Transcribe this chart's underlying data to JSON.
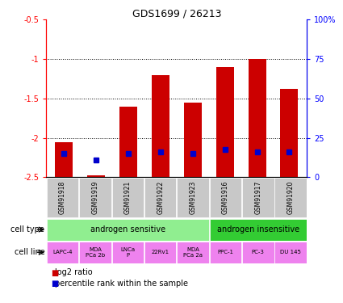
{
  "title": "GDS1699 / 26213",
  "samples": [
    "GSM91918",
    "GSM91919",
    "GSM91921",
    "GSM91922",
    "GSM91923",
    "GSM91916",
    "GSM91917",
    "GSM91920"
  ],
  "log2_ratio": [
    -2.05,
    -2.48,
    -1.6,
    -1.2,
    -1.55,
    -1.1,
    -1.0,
    -1.38
  ],
  "percentile_rank_value": [
    -2.2,
    -2.28,
    -2.2,
    -2.18,
    -2.2,
    -2.15,
    -2.18,
    -2.18
  ],
  "ylim": [
    -2.5,
    -0.5
  ],
  "yticks": [
    -2.5,
    -2.0,
    -1.5,
    -1.0,
    -0.5
  ],
  "ytick_labels": [
    "-2.5",
    "-2",
    "-1.5",
    "-1",
    "-0.5"
  ],
  "right_yticks_pct": [
    "0",
    "25",
    "50",
    "75",
    "100%"
  ],
  "right_ytick_pos": [
    -2.5,
    -2.0,
    -1.5,
    -1.0,
    -0.5
  ],
  "bar_color": "#cc0000",
  "dot_color": "#0000cc",
  "cell_type_groups": [
    {
      "label": "androgen sensitive",
      "start": 0,
      "end": 5,
      "color": "#90ee90"
    },
    {
      "label": "androgen insensitive",
      "start": 5,
      "end": 8,
      "color": "#33cc33"
    }
  ],
  "cell_lines": [
    "LAPC-4",
    "MDA\nPCa 2b",
    "LNCa\nP",
    "22Rv1",
    "MDA\nPCa 2a",
    "PPC-1",
    "PC-3",
    "DU 145"
  ],
  "cell_line_color": "#ee82ee",
  "sample_bg_color": "#c8c8c8",
  "legend_red_label": "log2 ratio",
  "legend_blue_label": "percentile rank within the sample",
  "cell_type_label": "cell type",
  "cell_line_label": "cell line",
  "bar_width": 0.55,
  "bottom_val": -2.5,
  "xlim": [
    -0.55,
    7.55
  ]
}
